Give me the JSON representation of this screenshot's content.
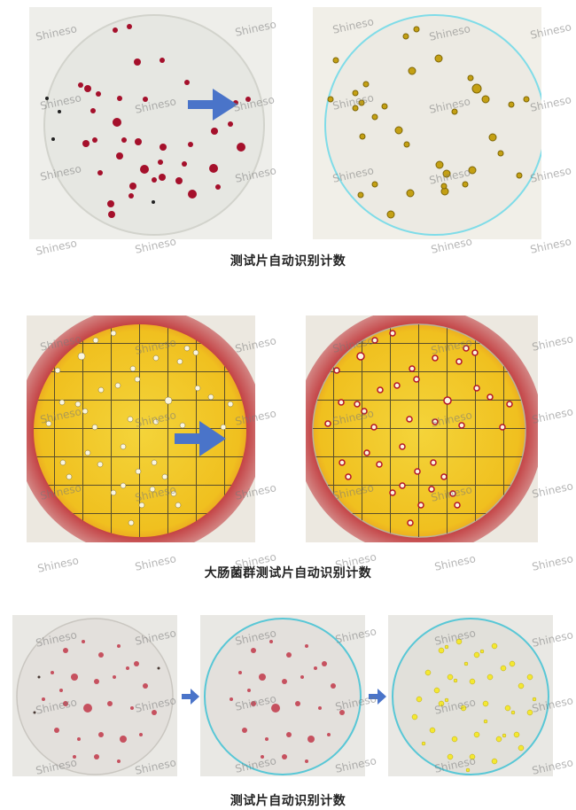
{
  "captions": {
    "row1": "测试片自动识别计数",
    "row2": "大肠菌群测试片自动识别计数",
    "row3": "测试片自动识别计数"
  },
  "watermark": "Shineso",
  "colors": {
    "arrow": "#4a74c9",
    "ring": "#58c7d6",
    "red_colony": "#b3122a",
    "gold_colony": "#c9a312",
    "yellow_mark": "#f4e832"
  },
  "icons": [
    "arrow-right-icon"
  ]
}
